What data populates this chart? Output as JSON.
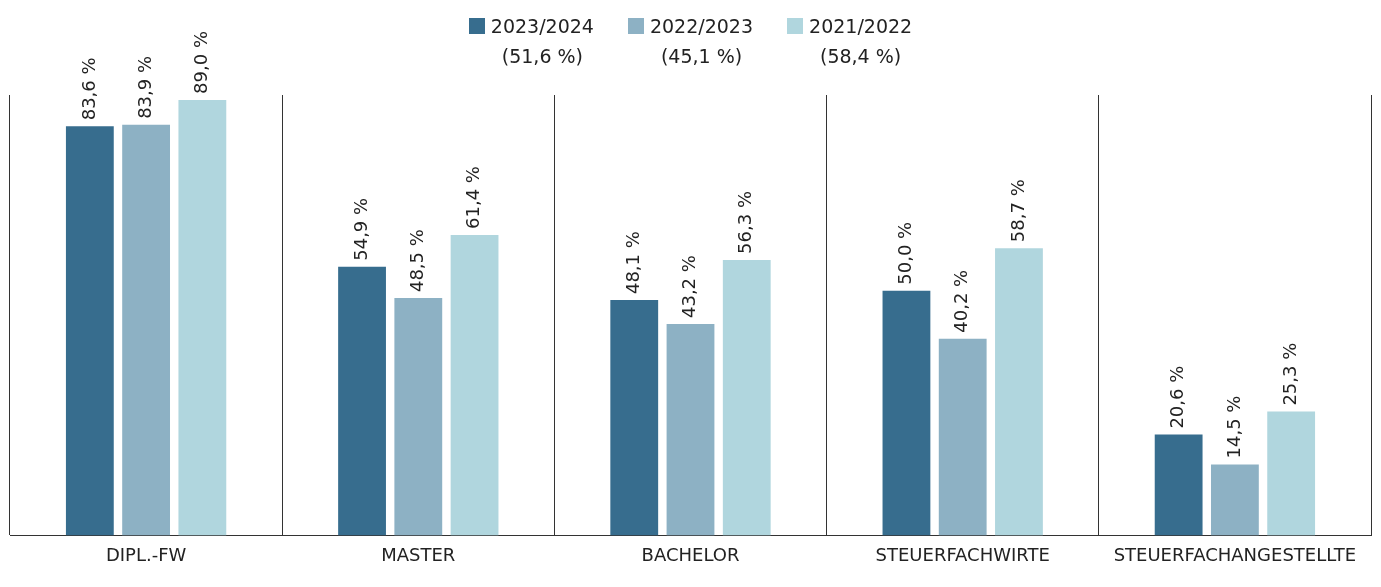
{
  "chart_data": {
    "type": "bar",
    "categories": [
      "DIPL.-FW",
      "MASTER",
      "BACHELOR",
      "STEUERFACHWIRTE",
      "STEUERFACHANGESTELLTE"
    ],
    "series": [
      {
        "name": "2023/2024\n(51,6 %)",
        "color": "#376d8e",
        "values": [
          83.6,
          54.9,
          48.1,
          50.0,
          20.6
        ],
        "value_labels": [
          "83,6 %",
          "54,9 %",
          "48,1 %",
          "50,0 %",
          "20,6 %"
        ]
      },
      {
        "name": "2022/2023\n(45,1 %)",
        "color": "#8db1c4",
        "values": [
          83.9,
          48.5,
          43.2,
          40.2,
          14.5
        ],
        "value_labels": [
          "83,9 %",
          "48,5 %",
          "43,2 %",
          "40,2 %",
          "14,5 %"
        ]
      },
      {
        "name": "2021/2022\n(58,4 %)",
        "color": "#b0d6de",
        "values": [
          89.0,
          61.4,
          56.3,
          58.7,
          25.3
        ],
        "value_labels": [
          "89,0 %",
          "61,4 %",
          "56,3 %",
          "58,7 %",
          "25,3 %"
        ]
      }
    ],
    "grid": "x",
    "legend": "top",
    "tick_labels": "x"
  }
}
